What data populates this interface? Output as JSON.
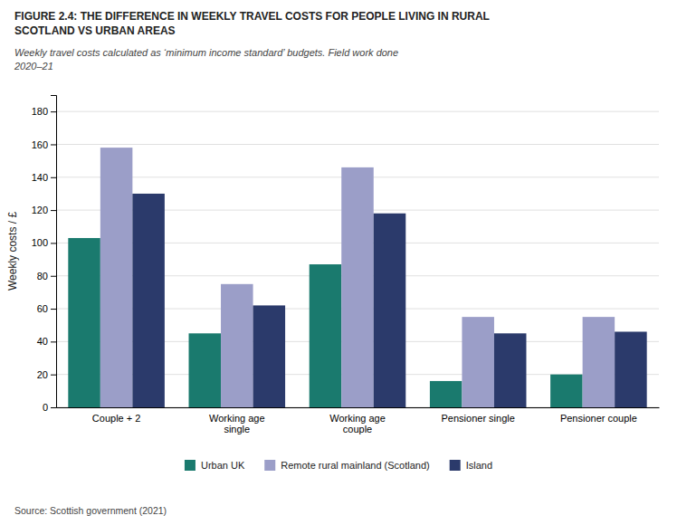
{
  "chart_data": {
    "type": "bar",
    "title": "FIGURE 2.4: THE DIFFERENCE IN WEEKLY TRAVEL COSTS FOR PEOPLE LIVING IN RURAL\nSCOTLAND VS URBAN AREAS",
    "subtitle": "Weekly travel costs calculated as ‘minimum income standard’ budgets. Field work done\n2020–21",
    "categories": [
      "Couple + 2",
      "Working age\nsingle",
      "Working age\ncouple",
      "Pensioner single",
      "Pensioner couple"
    ],
    "series": [
      {
        "name": "Urban UK",
        "color": "#1a7a6e",
        "values": [
          103,
          45,
          87,
          16,
          20
        ]
      },
      {
        "name": "Remote rural mainland (Scotland)",
        "color": "#9b9ec8",
        "values": [
          158,
          75,
          146,
          55,
          55
        ]
      },
      {
        "name": "Island",
        "color": "#2b3a6b",
        "values": [
          130,
          62,
          118,
          45,
          46
        ]
      }
    ],
    "ylabel": "Weekly costs / £",
    "ylim": [
      0,
      190
    ],
    "yticks": [
      0,
      20,
      40,
      60,
      80,
      100,
      120,
      140,
      160,
      180
    ],
    "grid": true,
    "legend": "bottom",
    "annotations": [
      "Source: Scottish government (2021)"
    ]
  }
}
